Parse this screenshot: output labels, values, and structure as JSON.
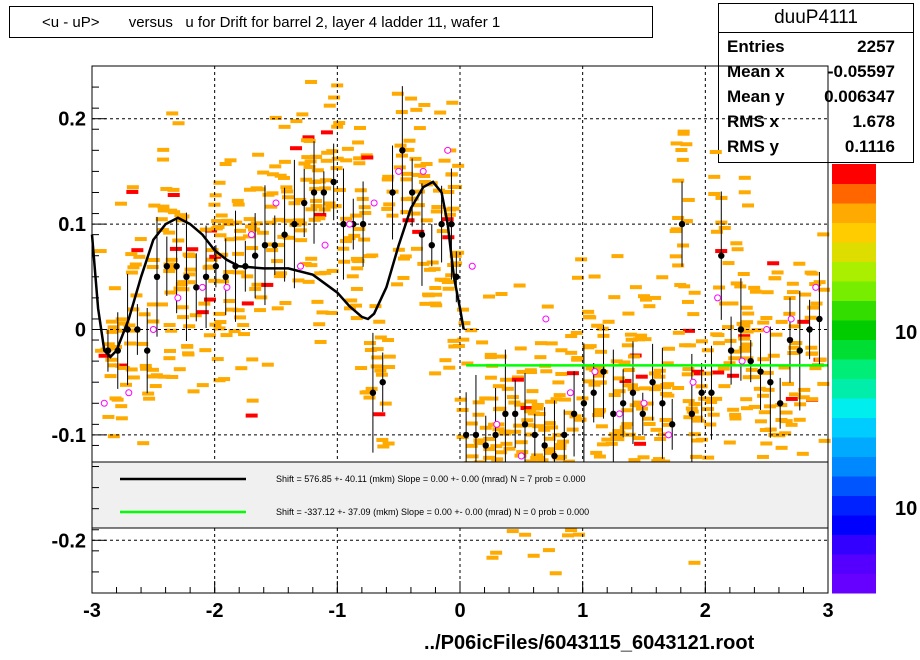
{
  "title": "<u - uP>       versus   u for Drift for barrel 2, layer 4 ladder 11, wafer 1",
  "stats": {
    "name": "duuP4111",
    "rows": [
      {
        "key": "Entries",
        "value": "2257"
      },
      {
        "key": "Mean x",
        "value": "-0.05597"
      },
      {
        "key": "Mean y",
        "value": "0.006347"
      },
      {
        "key": "RMS x",
        "value": "1.678"
      },
      {
        "key": "RMS y",
        "value": "0.1116"
      }
    ]
  },
  "footer": "../P06icFiles/6043115_6043121.root",
  "colors": {
    "frame": "#000000",
    "histogram_cells": "#ffaa00",
    "histogram_cells_alt": "#ff0000",
    "profile_points": "#000000",
    "open_points": "#ff00ff",
    "fit_black": "#000000",
    "fit_green": "#00ff00",
    "legend_fill": "#f0f0f0"
  },
  "palette_labels": [
    "10",
    "10"
  ],
  "legend": [
    {
      "text": "Shift =   576.85 +- 40.11 (mkm) Slope =     0.00 +- 0.00 (mrad)  N = 7 prob = 0.000",
      "color": "#000000"
    },
    {
      "text": "Shift =  -337.12 +- 37.09 (mkm) Slope =     0.00 +- 0.00 (mrad)  N = 0 prob = 0.000",
      "color": "#00ff00"
    }
  ],
  "chart_data": {
    "type": "scatter",
    "xlim": [
      -3,
      3
    ],
    "ylim": [
      -0.25,
      0.25
    ],
    "xticks": [
      -3,
      -2,
      -1,
      0,
      1,
      2,
      3
    ],
    "xtick_labels": [
      "-3",
      "-2",
      "-1",
      "0",
      "1",
      "2",
      "3"
    ],
    "yticks": [
      -0.2,
      -0.1,
      0,
      0.1,
      0.2
    ],
    "ytick_labels": [
      "-0.2",
      "-0.1",
      "0",
      "0.1",
      "0.2"
    ],
    "grid": true,
    "profile_points": [
      {
        "x": -2.87,
        "y": -0.02
      },
      {
        "x": -2.79,
        "y": -0.02
      },
      {
        "x": -2.71,
        "y": 0.0
      },
      {
        "x": -2.63,
        "y": 0.0
      },
      {
        "x": -2.55,
        "y": -0.02
      },
      {
        "x": -2.47,
        "y": 0.05
      },
      {
        "x": -2.39,
        "y": 0.06
      },
      {
        "x": -2.31,
        "y": 0.06
      },
      {
        "x": -2.23,
        "y": 0.05
      },
      {
        "x": -2.15,
        "y": 0.04
      },
      {
        "x": -2.07,
        "y": 0.05
      },
      {
        "x": -1.99,
        "y": 0.06
      },
      {
        "x": -1.91,
        "y": 0.05
      },
      {
        "x": -1.83,
        "y": 0.06
      },
      {
        "x": -1.75,
        "y": 0.06
      },
      {
        "x": -1.67,
        "y": 0.07
      },
      {
        "x": -1.59,
        "y": 0.08
      },
      {
        "x": -1.51,
        "y": 0.08
      },
      {
        "x": -1.43,
        "y": 0.09
      },
      {
        "x": -1.35,
        "y": 0.1
      },
      {
        "x": -1.27,
        "y": 0.12
      },
      {
        "x": -1.19,
        "y": 0.13
      },
      {
        "x": -1.11,
        "y": 0.13
      },
      {
        "x": -1.03,
        "y": 0.14
      },
      {
        "x": -0.95,
        "y": 0.1
      },
      {
        "x": -0.87,
        "y": 0.1
      },
      {
        "x": -0.79,
        "y": 0.1
      },
      {
        "x": -0.71,
        "y": -0.06
      },
      {
        "x": -0.63,
        "y": -0.05
      },
      {
        "x": -0.55,
        "y": 0.13
      },
      {
        "x": -0.47,
        "y": 0.17
      },
      {
        "x": -0.39,
        "y": 0.13
      },
      {
        "x": -0.31,
        "y": 0.09
      },
      {
        "x": -0.23,
        "y": 0.08
      },
      {
        "x": -0.15,
        "y": 0.1
      },
      {
        "x": -0.07,
        "y": 0.1
      },
      {
        "x": -0.03,
        "y": 0.05
      },
      {
        "x": 0.05,
        "y": -0.1
      },
      {
        "x": 0.13,
        "y": -0.1
      },
      {
        "x": 0.21,
        "y": -0.11
      },
      {
        "x": 0.29,
        "y": -0.1
      },
      {
        "x": 0.37,
        "y": -0.08
      },
      {
        "x": 0.45,
        "y": -0.08
      },
      {
        "x": 0.53,
        "y": -0.09
      },
      {
        "x": 0.61,
        "y": -0.1
      },
      {
        "x": 0.69,
        "y": -0.11
      },
      {
        "x": 0.77,
        "y": -0.12
      },
      {
        "x": 0.85,
        "y": -0.1
      },
      {
        "x": 0.93,
        "y": -0.08
      },
      {
        "x": 1.01,
        "y": -0.07
      },
      {
        "x": 1.09,
        "y": -0.06
      },
      {
        "x": 1.17,
        "y": -0.04
      },
      {
        "x": 1.25,
        "y": -0.08
      },
      {
        "x": 1.33,
        "y": -0.07
      },
      {
        "x": 1.41,
        "y": -0.06
      },
      {
        "x": 1.49,
        "y": -0.08
      },
      {
        "x": 1.57,
        "y": -0.05
      },
      {
        "x": 1.65,
        "y": -0.07
      },
      {
        "x": 1.73,
        "y": -0.09
      },
      {
        "x": 1.81,
        "y": 0.1
      },
      {
        "x": 1.89,
        "y": -0.08
      },
      {
        "x": 1.97,
        "y": -0.06
      },
      {
        "x": 2.05,
        "y": -0.06
      },
      {
        "x": 2.13,
        "y": 0.07
      },
      {
        "x": 2.21,
        "y": -0.02
      },
      {
        "x": 2.29,
        "y": 0.0
      },
      {
        "x": 2.37,
        "y": -0.03
      },
      {
        "x": 2.45,
        "y": -0.04
      },
      {
        "x": 2.53,
        "y": -0.05
      },
      {
        "x": 2.61,
        "y": -0.07
      },
      {
        "x": 2.69,
        "y": -0.01
      },
      {
        "x": 2.77,
        "y": -0.02
      },
      {
        "x": 2.85,
        "y": 0.0
      },
      {
        "x": 2.93,
        "y": 0.01
      }
    ],
    "open_points": [
      {
        "x": -2.9,
        "y": -0.07
      },
      {
        "x": -2.7,
        "y": -0.06
      },
      {
        "x": -2.5,
        "y": 0.0
      },
      {
        "x": -2.3,
        "y": 0.03
      },
      {
        "x": -2.1,
        "y": 0.04
      },
      {
        "x": -1.9,
        "y": 0.04
      },
      {
        "x": -1.7,
        "y": 0.09
      },
      {
        "x": -1.5,
        "y": 0.12
      },
      {
        "x": -1.3,
        "y": 0.06
      },
      {
        "x": -1.1,
        "y": 0.08
      },
      {
        "x": -0.9,
        "y": 0.1
      },
      {
        "x": -0.7,
        "y": 0.12
      },
      {
        "x": -0.5,
        "y": 0.15
      },
      {
        "x": -0.3,
        "y": 0.15
      },
      {
        "x": -0.1,
        "y": 0.17
      },
      {
        "x": 0.1,
        "y": 0.06
      },
      {
        "x": 0.3,
        "y": -0.09
      },
      {
        "x": 0.5,
        "y": -0.12
      },
      {
        "x": 0.7,
        "y": 0.01
      },
      {
        "x": 0.9,
        "y": -0.06
      },
      {
        "x": 1.1,
        "y": -0.04
      },
      {
        "x": 1.3,
        "y": -0.08
      },
      {
        "x": 1.5,
        "y": -0.07
      },
      {
        "x": 1.7,
        "y": -0.1
      },
      {
        "x": 1.9,
        "y": -0.05
      },
      {
        "x": 2.1,
        "y": 0.03
      },
      {
        "x": 2.3,
        "y": -0.03
      },
      {
        "x": 2.5,
        "y": 0.0
      },
      {
        "x": 2.7,
        "y": 0.01
      },
      {
        "x": 2.9,
        "y": 0.04
      }
    ],
    "fit_black": {
      "x_range": [
        -3,
        0.05
      ],
      "points": [
        [
          -3.0,
          0.09
        ],
        [
          -2.95,
          0.02
        ],
        [
          -2.9,
          -0.02
        ],
        [
          -2.85,
          -0.026
        ],
        [
          -2.8,
          -0.02
        ],
        [
          -2.7,
          0.01
        ],
        [
          -2.6,
          0.05
        ],
        [
          -2.5,
          0.085
        ],
        [
          -2.4,
          0.1
        ],
        [
          -2.3,
          0.106
        ],
        [
          -2.2,
          0.1
        ],
        [
          -2.1,
          0.09
        ],
        [
          -2.0,
          0.075
        ],
        [
          -1.9,
          0.066
        ],
        [
          -1.8,
          0.06
        ],
        [
          -1.6,
          0.058
        ],
        [
          -1.4,
          0.058
        ],
        [
          -1.2,
          0.052
        ],
        [
          -1.0,
          0.035
        ],
        [
          -0.9,
          0.022
        ],
        [
          -0.8,
          0.012
        ],
        [
          -0.75,
          0.01
        ],
        [
          -0.7,
          0.015
        ],
        [
          -0.6,
          0.04
        ],
        [
          -0.5,
          0.08
        ],
        [
          -0.4,
          0.115
        ],
        [
          -0.3,
          0.135
        ],
        [
          -0.22,
          0.14
        ],
        [
          -0.15,
          0.13
        ],
        [
          -0.1,
          0.1
        ],
        [
          -0.05,
          0.05
        ],
        [
          0.0,
          0.02
        ],
        [
          0.03,
          0.0
        ]
      ]
    },
    "fit_green": {
      "x_range": [
        0.05,
        3.0
      ],
      "y": -0.034
    }
  }
}
